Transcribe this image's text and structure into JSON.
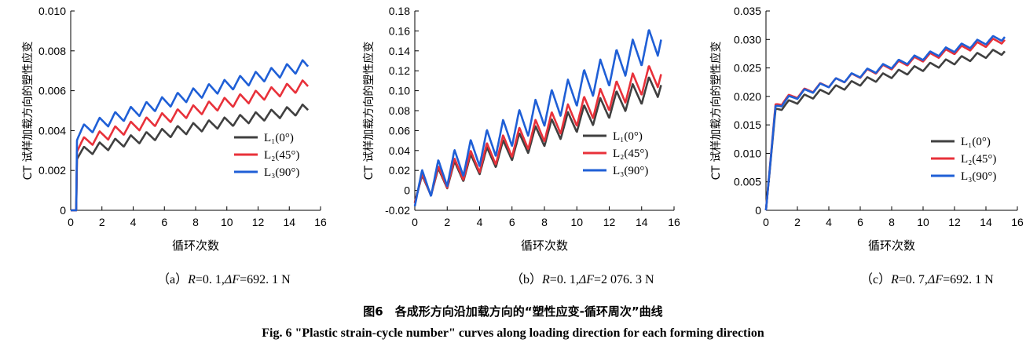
{
  "figure": {
    "caption_cn": "图6　各成形方向沿加载方向的“塑性应变-循环周次”曲线",
    "caption_en": "Fig. 6    \"Plastic strain-cycle number\" curves along loading direction for each forming direction"
  },
  "colors": {
    "L1": "#404040",
    "L2": "#e8313a",
    "L3": "#1f5fd6"
  },
  "chart_data": [
    {
      "type": "line",
      "label": "（a）R=0. 1,ΔF=692. 1 N",
      "label_parts": {
        "prefix": "（a）",
        "r_var": "R",
        "r_val": "=0. 1,",
        "f_var": "ΔF",
        "f_val": "=692. 1 N"
      },
      "xlabel": "循环次数",
      "ylabel": "CT 试样加载方向的塑性应变",
      "xlim": [
        0,
        16
      ],
      "ylim": [
        0,
        0.01
      ],
      "xticks": [
        0,
        2,
        4,
        6,
        8,
        10,
        12,
        14,
        16
      ],
      "yticks": [
        0,
        0.002,
        0.004,
        0.006,
        0.008,
        0.01
      ],
      "ytick_labels": [
        "0",
        "0.002",
        "0.004",
        "0.006",
        "0.008",
        "0.010"
      ],
      "legend_position": "lower-right",
      "start": 0.4,
      "end": 15.2,
      "series": [
        {
          "name": "L₁(0°)",
          "color_key": "L1",
          "jump": 0.0028,
          "final": 0.0051,
          "ripple": 0.00025
        },
        {
          "name": "L₂(45°)",
          "color_key": "L2",
          "jump": 0.0032,
          "final": 0.0063,
          "ripple": 0.00028
        },
        {
          "name": "L₃(90°)",
          "color_key": "L3",
          "jump": 0.0038,
          "final": 0.0073,
          "ripple": 0.0003
        }
      ]
    },
    {
      "type": "line",
      "label": "（b）R=0. 1,ΔF=2 076. 3 N",
      "label_parts": {
        "prefix": "（b）",
        "r_var": "R",
        "r_val": "=0. 1,",
        "f_var": "ΔF",
        "f_val": "=2 076. 3 N"
      },
      "xlabel": "循环次数",
      "ylabel": "CT 试样加载方向的塑性应变",
      "xlim": [
        0,
        16
      ],
      "ylim": [
        -0.02,
        0.18
      ],
      "xticks": [
        0,
        2,
        4,
        6,
        8,
        10,
        12,
        14,
        16
      ],
      "yticks": [
        -0.02,
        0,
        0.02,
        0.04,
        0.06,
        0.08,
        0.1,
        0.12,
        0.14,
        0.16,
        0.18
      ],
      "ytick_labels": [
        "-0.02",
        "0",
        "0.02",
        "0.04",
        "0.06",
        "0.08",
        "0.10",
        "0.12",
        "0.14",
        "0.16",
        "0.18"
      ],
      "legend_position": "right",
      "start": 0.0,
      "end": 15.2,
      "series": [
        {
          "name": "L₁(0°)",
          "color_key": "L1",
          "jump": 0.0,
          "final": 0.107,
          "ripple": 0.012
        },
        {
          "name": "L₂(45°)",
          "color_key": "L2",
          "jump": 0.0,
          "final": 0.118,
          "ripple": 0.013
        },
        {
          "name": "L₃(90°)",
          "color_key": "L3",
          "jump": 0.0,
          "final": 0.153,
          "ripple": 0.016
        }
      ]
    },
    {
      "type": "line",
      "label": "（c）R=0. 7,ΔF=692. 1 N",
      "label_parts": {
        "prefix": "（c）",
        "r_var": "R",
        "r_val": "=0. 7,",
        "f_var": "ΔF",
        "f_val": "=692. 1 N"
      },
      "xlabel": "循环次数",
      "ylabel": "CT 试样加载方向的塑性应变",
      "xlim": [
        0,
        16
      ],
      "ylim": [
        0,
        0.035
      ],
      "xticks": [
        0,
        2,
        4,
        6,
        8,
        10,
        12,
        14,
        16
      ],
      "yticks": [
        0,
        0.005,
        0.01,
        0.015,
        0.02,
        0.025,
        0.03,
        0.035
      ],
      "ytick_labels": [
        "0",
        "0.005",
        "0.010",
        "0.015",
        "0.020",
        "0.025",
        "0.030",
        "0.035"
      ],
      "legend_position": "lower-right",
      "start": 0.0,
      "end": 15.2,
      "series": [
        {
          "name": "L₁(0°)",
          "color_key": "L1",
          "jump": 0.0175,
          "final": 0.028,
          "ripple": 0.0006
        },
        {
          "name": "L₂(45°)",
          "color_key": "L2",
          "jump": 0.0183,
          "final": 0.03,
          "ripple": 0.0006
        },
        {
          "name": "L₃(90°)",
          "color_key": "L3",
          "jump": 0.018,
          "final": 0.0305,
          "ripple": 0.0006
        }
      ]
    }
  ]
}
